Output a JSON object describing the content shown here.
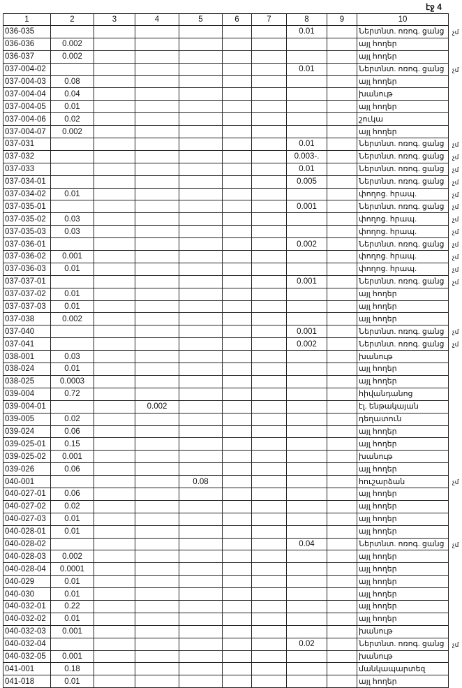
{
  "page_label": "էջ 4",
  "headers": [
    "1",
    "2",
    "3",
    "4",
    "5",
    "6",
    "7",
    "8",
    "9",
    "10"
  ],
  "note_mark": "չմ",
  "rows": [
    {
      "c": [
        "036-035",
        "",
        "",
        "",
        "",
        "",
        "",
        "0.01",
        "",
        "Ներտնտ. ոռոգ. ցանց"
      ],
      "m": true
    },
    {
      "c": [
        "036-036",
        "0.002",
        "",
        "",
        "",
        "",
        "",
        "",
        "",
        "այլ հողեր"
      ]
    },
    {
      "c": [
        "036-037",
        "0.002",
        "",
        "",
        "",
        "",
        "",
        "",
        "",
        "այլ հողեր"
      ]
    },
    {
      "c": [
        "037-004-02",
        "",
        "",
        "",
        "",
        "",
        "",
        "0.01",
        "",
        "Ներտնտ. ոռոգ. ցանց"
      ],
      "m": true
    },
    {
      "c": [
        "037-004-03",
        "0.08",
        "",
        "",
        "",
        "",
        "",
        "",
        "",
        "այլ հողեր"
      ]
    },
    {
      "c": [
        "037-004-04",
        "0.04",
        "",
        "",
        "",
        "",
        "",
        "",
        "",
        "խանութ"
      ]
    },
    {
      "c": [
        "037-004-05",
        "0.01",
        "",
        "",
        "",
        "",
        "",
        "",
        "",
        "այլ հողեր"
      ]
    },
    {
      "c": [
        "037-004-06",
        "0.02",
        "",
        "",
        "",
        "",
        "",
        "",
        "",
        "շուկա"
      ]
    },
    {
      "c": [
        "037-004-07",
        "0.002",
        "",
        "",
        "",
        "",
        "",
        "",
        "",
        "այլ հողեր"
      ]
    },
    {
      "c": [
        "037-031",
        "",
        "",
        "",
        "",
        "",
        "",
        "0.01",
        "",
        "Ներտնտ. ոռոգ. ցանց"
      ],
      "m": true
    },
    {
      "c": [
        "037-032",
        "",
        "",
        "",
        "",
        "",
        "",
        "0.003-.",
        "",
        "Ներտնտ. ոռոգ. ցանց"
      ],
      "m": true
    },
    {
      "c": [
        "037-033",
        "",
        "",
        "",
        "",
        "",
        "",
        "0.01",
        "",
        "Ներտնտ. ոռոգ. ցանց"
      ],
      "m": true
    },
    {
      "c": [
        "037-034-01",
        "",
        "",
        "",
        "",
        "",
        "",
        "0.005",
        "",
        "Ներտնտ. ոռոգ. ցանց"
      ],
      "m": true
    },
    {
      "c": [
        "037-034-02",
        "0.01",
        "",
        "",
        "",
        "",
        "",
        "",
        "",
        "փողոց. հրապ."
      ],
      "m": true
    },
    {
      "c": [
        "037-035-01",
        "",
        "",
        "",
        "",
        "",
        "",
        "0.001",
        "",
        "Ներտնտ. ոռոգ. ցանց"
      ],
      "m": true
    },
    {
      "c": [
        "037-035-02",
        "0.03",
        "",
        "",
        "",
        "",
        "",
        "",
        "",
        "փողոց. հրապ."
      ],
      "m": true
    },
    {
      "c": [
        "037-035-03",
        "0.03",
        "",
        "",
        "",
        "",
        "",
        "",
        "",
        "փողոց. հրապ."
      ],
      "m": true
    },
    {
      "c": [
        "037-036-01",
        "",
        "",
        "",
        "",
        "",
        "",
        "0.002",
        "",
        "Ներտնտ. ոռոգ. ցանց"
      ],
      "m": true
    },
    {
      "c": [
        "037-036-02",
        "0.001",
        "",
        "",
        "",
        "",
        "",
        "",
        "",
        "փողոց. հրապ."
      ],
      "m": true
    },
    {
      "c": [
        "037-036-03",
        "0.01",
        "",
        "",
        "",
        "",
        "",
        "",
        "",
        "փողոց. հրապ."
      ],
      "m": true
    },
    {
      "c": [
        "037-037-01",
        "",
        "",
        "",
        "",
        "",
        "",
        "0.001",
        "",
        "Ներտնտ. ոռոգ. ցանց"
      ],
      "m": true
    },
    {
      "c": [
        "037-037-02",
        "0.01",
        "",
        "",
        "",
        "",
        "",
        "",
        "",
        "այլ հողեր"
      ]
    },
    {
      "c": [
        "037-037-03",
        "0.01",
        "",
        "",
        "",
        "",
        "",
        "",
        "",
        "այլ հողեր"
      ]
    },
    {
      "c": [
        "037-038",
        "0.002",
        "",
        "",
        "",
        "",
        "",
        "",
        "",
        "այլ հողեր"
      ]
    },
    {
      "c": [
        "037-040",
        "",
        "",
        "",
        "",
        "",
        "",
        "0.001",
        "",
        "Ներտնտ. ոռոգ. ցանց"
      ],
      "m": true
    },
    {
      "c": [
        "037-041",
        "",
        "",
        "",
        "",
        "",
        "",
        "0.002",
        "",
        "Ներտնտ. ոռոգ. ցանց"
      ],
      "m": true
    },
    {
      "c": [
        "038-001",
        "0.03",
        "",
        "",
        "",
        "",
        "",
        "",
        "",
        "խանութ"
      ]
    },
    {
      "c": [
        "038-024",
        "0.01",
        "",
        "",
        "",
        "",
        "",
        "",
        "",
        "այլ հողեր"
      ]
    },
    {
      "c": [
        "038-025",
        "0.0003",
        "",
        "",
        "",
        "",
        "",
        "",
        "",
        "այլ հողեր"
      ]
    },
    {
      "c": [
        "039-004",
        "0.72",
        "",
        "",
        "",
        "",
        "",
        "",
        "",
        "հիվանդանոց"
      ]
    },
    {
      "c": [
        "039-004-01",
        "",
        "",
        "0.002",
        "",
        "",
        "",
        "",
        "",
        "էլ. ենթակայան"
      ]
    },
    {
      "c": [
        "039-005",
        "0.02",
        "",
        "",
        "",
        "",
        "",
        "",
        "",
        "դեղատուն"
      ]
    },
    {
      "c": [
        "039-024",
        "0.06",
        "",
        "",
        "",
        "",
        "",
        "",
        "",
        "այլ հողեր"
      ]
    },
    {
      "c": [
        "039-025-01",
        "0.15",
        "",
        "",
        "",
        "",
        "",
        "",
        "",
        "այլ հողեր"
      ]
    },
    {
      "c": [
        "039-025-02",
        "0.001",
        "",
        "",
        "",
        "",
        "",
        "",
        "",
        "խանութ"
      ]
    },
    {
      "c": [
        "039-026",
        "0.06",
        "",
        "",
        "",
        "",
        "",
        "",
        "",
        "այլ հողեր"
      ]
    },
    {
      "c": [
        "040-001",
        "",
        "",
        "",
        "0.08",
        "",
        "",
        "",
        "",
        "հուշարձան"
      ],
      "m": true
    },
    {
      "c": [
        "040-027-01",
        "0.06",
        "",
        "",
        "",
        "",
        "",
        "",
        "",
        "այլ հողեր"
      ]
    },
    {
      "c": [
        "040-027-02",
        "0.02",
        "",
        "",
        "",
        "",
        "",
        "",
        "",
        "այլ հողեր"
      ]
    },
    {
      "c": [
        "040-027-03",
        "0.01",
        "",
        "",
        "",
        "",
        "",
        "",
        "",
        "այլ հողեր"
      ]
    },
    {
      "c": [
        "040-028-01",
        "0.01",
        "",
        "",
        "",
        "",
        "",
        "",
        "",
        "այլ հողեր"
      ]
    },
    {
      "c": [
        "040-028-02",
        "",
        "",
        "",
        "",
        "",
        "",
        "0.04",
        "",
        "Ներտնտ. ոռոգ. ցանց"
      ],
      "m": true
    },
    {
      "c": [
        "040-028-03",
        "0.002",
        "",
        "",
        "",
        "",
        "",
        "",
        "",
        "այլ հողեր"
      ]
    },
    {
      "c": [
        "040-028-04",
        "0.0001",
        "",
        "",
        "",
        "",
        "",
        "",
        "",
        "այլ հողեր"
      ]
    },
    {
      "c": [
        "040-029",
        "0.01",
        "",
        "",
        "",
        "",
        "",
        "",
        "",
        "այլ հողեր"
      ]
    },
    {
      "c": [
        "040-030",
        "0.01",
        "",
        "",
        "",
        "",
        "",
        "",
        "",
        "այլ հողեր"
      ]
    },
    {
      "c": [
        "040-032-01",
        "0.22",
        "",
        "",
        "",
        "",
        "",
        "",
        "",
        "այլ հողեր"
      ]
    },
    {
      "c": [
        "040-032-02",
        "0.01",
        "",
        "",
        "",
        "",
        "",
        "",
        "",
        "այլ հողեր"
      ]
    },
    {
      "c": [
        "040-032-03",
        "0.001",
        "",
        "",
        "",
        "",
        "",
        "",
        "",
        "խանութ"
      ]
    },
    {
      "c": [
        "040-032-04",
        "",
        "",
        "",
        "",
        "",
        "",
        "0.02",
        "",
        "Ներտնտ. ոռոգ. ցանց"
      ],
      "m": true
    },
    {
      "c": [
        "040-032-05",
        "0.001",
        "",
        "",
        "",
        "",
        "",
        "",
        "",
        "խանութ"
      ]
    },
    {
      "c": [
        "041-001",
        "0.18",
        "",
        "",
        "",
        "",
        "",
        "",
        "",
        "մանկապարտեզ"
      ]
    },
    {
      "c": [
        "041-018",
        "0.01",
        "",
        "",
        "",
        "",
        "",
        "",
        "",
        "այլ հողեր"
      ]
    }
  ]
}
